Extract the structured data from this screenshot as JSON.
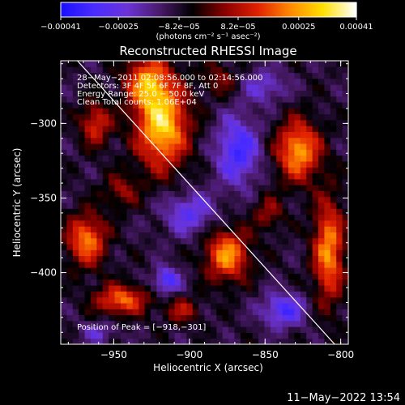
{
  "chart_data": {
    "type": "heatmap",
    "title": "Reconstructed RHESSI Image",
    "xlabel": "Heliocentric X (arcsec)",
    "ylabel": "Heliocentric Y (arcsec)",
    "xlim": [
      -985,
      -795
    ],
    "ylim": [
      -448,
      -258
    ],
    "x_ticks": [
      -950,
      -900,
      -850,
      -800
    ],
    "x_tick_labels": [
      "−950",
      "−900",
      "−850",
      "−800"
    ],
    "y_ticks": [
      -400,
      -350,
      -300
    ],
    "y_tick_labels": [
      "−400",
      "−350",
      "−300"
    ],
    "colorbar": {
      "min": -0.00041,
      "max": 0.00041,
      "ticks": [
        -0.00041,
        -0.00025,
        -8.2e-05,
        8.2e-05,
        0.00025,
        0.00041
      ],
      "tick_labels": [
        "−0.00041",
        "−0.00025",
        "−8.2e−05",
        "8.2e−05",
        "0.00025",
        "0.00041"
      ],
      "units_label": "(photons cm⁻² s⁻¹ asec⁻²)",
      "colors": [
        "#1a10ff",
        "#4a2cff",
        "#6b34d8",
        "#4a1a6a",
        "#000000",
        "#8a0000",
        "#e02000",
        "#ff8800",
        "#ffe000",
        "#ffffff"
      ]
    },
    "info_lines": [
      "28−May−2011 02:08:56.000 to 02:14:56.000",
      "Detectors: 3F 4F 5F 6F 7F 8F, Att 0",
      "Energy Range: 25.0 − 50.0 keV",
      "Clean    Total counts: 1.06E+04"
    ],
    "peak_label": "Position of Peak = [−918,−301]",
    "peak": {
      "x": -918,
      "y": -301
    },
    "limb_line": {
      "x": [
        -974,
        -804
      ],
      "y": [
        -258,
        -448
      ],
      "color": "#ffffff"
    },
    "sources": [
      {
        "x": -918,
        "y": -301,
        "peak": 1.0,
        "sx": 12,
        "sy": 20
      },
      {
        "x": -928,
        "y": -272,
        "peak": 0.7,
        "sx": 10,
        "sy": 12
      },
      {
        "x": -962,
        "y": -300,
        "peak": 0.55,
        "sx": 7,
        "sy": 10
      },
      {
        "x": -828,
        "y": -318,
        "peak": 0.85,
        "sx": 10,
        "sy": 14
      },
      {
        "x": -875,
        "y": -388,
        "peak": 0.8,
        "sx": 10,
        "sy": 12
      },
      {
        "x": -968,
        "y": -378,
        "peak": 0.75,
        "sx": 9,
        "sy": 12
      },
      {
        "x": -945,
        "y": -418,
        "peak": 0.7,
        "sx": 12,
        "sy": 7
      },
      {
        "x": -808,
        "y": -385,
        "peak": 0.8,
        "sx": 7,
        "sy": 24
      },
      {
        "x": -905,
        "y": -425,
        "peak": 0.4,
        "sx": 8,
        "sy": 6
      },
      {
        "x": -848,
        "y": -360,
        "peak": 0.35,
        "sx": 7,
        "sy": 8
      },
      {
        "x": -880,
        "y": -270,
        "peak": 0.3,
        "sx": 8,
        "sy": 8
      },
      {
        "x": -945,
        "y": -345,
        "peak": 0.35,
        "sx": 8,
        "sy": 8
      },
      {
        "x": -868,
        "y": -318,
        "peak": -0.6,
        "sx": 10,
        "sy": 16
      },
      {
        "x": -900,
        "y": -360,
        "peak": -0.45,
        "sx": 12,
        "sy": 10
      },
      {
        "x": -838,
        "y": -425,
        "peak": -0.55,
        "sx": 10,
        "sy": 8
      },
      {
        "x": -915,
        "y": -405,
        "peak": -0.6,
        "sx": 6,
        "sy": 6
      },
      {
        "x": -850,
        "y": -275,
        "peak": -0.35,
        "sx": 10,
        "sy": 8
      },
      {
        "x": -960,
        "y": -440,
        "peak": -0.3,
        "sx": 8,
        "sy": 5
      }
    ]
  },
  "footer": {
    "timestamp": "11−May−2022 13:54"
  }
}
